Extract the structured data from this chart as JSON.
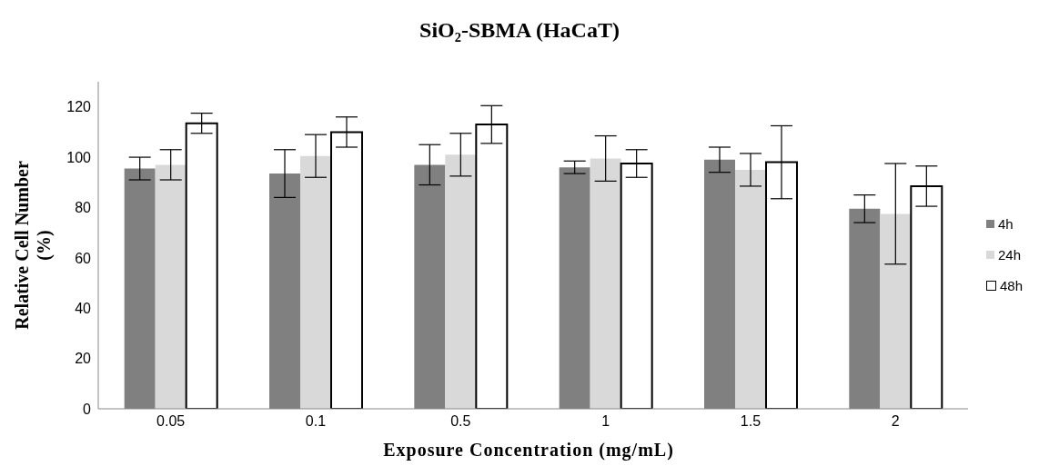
{
  "chart_data": {
    "type": "bar",
    "title": "SiO₂-SBMA (HaCaT)",
    "xlabel": "Exposure Concentration (mg/mL)",
    "ylabel": "Relative Cell Number (%)",
    "categories": [
      "0.05",
      "0.1",
      "0.5",
      "1",
      "1.5",
      "2"
    ],
    "series": [
      {
        "name": "4h",
        "color": "#808080",
        "values": [
          95.5,
          93.5,
          97,
          96,
          99,
          79.5
        ],
        "errors": [
          4.5,
          9.5,
          8,
          2.5,
          5,
          5.5
        ]
      },
      {
        "name": "24h",
        "color": "#d9d9d9",
        "values": [
          97,
          100.5,
          101,
          99.5,
          95,
          77.5
        ],
        "errors": [
          6,
          8.5,
          8.5,
          9,
          6.5,
          20
        ]
      },
      {
        "name": "48h",
        "color": "#ffffff",
        "values": [
          113.5,
          110,
          113,
          97.5,
          98,
          88.5
        ],
        "errors": [
          4,
          6,
          7.5,
          5.5,
          14.5,
          8
        ]
      }
    ],
    "ylim": [
      0,
      130
    ],
    "yticks": [
      0,
      20,
      40,
      60,
      80,
      100,
      120
    ],
    "grid": false,
    "legend": "right"
  }
}
